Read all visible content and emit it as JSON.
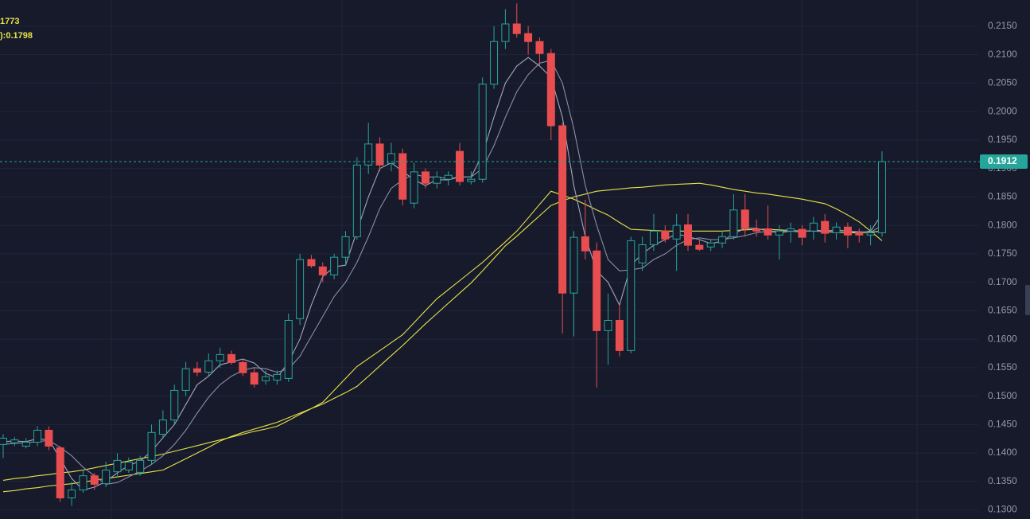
{
  "chart_data": {
    "type": "candlestick",
    "legend_texts": [
      "1773",
      "):0.1798"
    ],
    "legend_color": "#e8e34a",
    "up_color": "#26a69a",
    "down_color": "#e84e50",
    "ylim": [
      0.1284,
      0.2196
    ],
    "yticks": [
      {
        "value": 0.13,
        "label": "0.1300"
      },
      {
        "value": 0.135,
        "label": "0.1350"
      },
      {
        "value": 0.14,
        "label": "0.1400"
      },
      {
        "value": 0.145,
        "label": "0.1450"
      },
      {
        "value": 0.15,
        "label": "0.1500"
      },
      {
        "value": 0.155,
        "label": "0.1550"
      },
      {
        "value": 0.16,
        "label": "0.1600"
      },
      {
        "value": 0.165,
        "label": "0.1650"
      },
      {
        "value": 0.17,
        "label": "0.1700"
      },
      {
        "value": 0.175,
        "label": "0.1750"
      },
      {
        "value": 0.18,
        "label": "0.1800"
      },
      {
        "value": 0.185,
        "label": "0.1850"
      },
      {
        "value": 0.19,
        "label": "0.1900"
      },
      {
        "value": 0.195,
        "label": "0.1950"
      },
      {
        "value": 0.2,
        "label": "0.2000"
      },
      {
        "value": 0.205,
        "label": "0.2050"
      },
      {
        "value": 0.21,
        "label": "0.2100"
      },
      {
        "value": 0.215,
        "label": "0.2150"
      }
    ],
    "grid": true,
    "last_price": 0.1912,
    "ohlc": [
      [
        0.1415,
        0.1433,
        0.1391,
        0.1426
      ],
      [
        0.1418,
        0.1428,
        0.1412,
        0.1423
      ],
      [
        0.1412,
        0.1426,
        0.1408,
        0.1419
      ],
      [
        0.1419,
        0.1447,
        0.1412,
        0.144
      ],
      [
        0.144,
        0.1447,
        0.1405,
        0.1412
      ],
      [
        0.1409,
        0.1412,
        0.1314,
        0.1321
      ],
      [
        0.1321,
        0.1349,
        0.1307,
        0.1335
      ],
      [
        0.1335,
        0.137,
        0.133,
        0.136
      ],
      [
        0.136,
        0.1365,
        0.1335,
        0.1345
      ],
      [
        0.1346,
        0.1385,
        0.134,
        0.137
      ],
      [
        0.1367,
        0.14,
        0.136,
        0.1387
      ],
      [
        0.137,
        0.1392,
        0.1365,
        0.1384
      ],
      [
        0.1366,
        0.1395,
        0.136,
        0.1387
      ],
      [
        0.1387,
        0.145,
        0.138,
        0.1436
      ],
      [
        0.1433,
        0.1475,
        0.1425,
        0.1458
      ],
      [
        0.1458,
        0.152,
        0.145,
        0.151
      ],
      [
        0.151,
        0.156,
        0.15,
        0.1548
      ],
      [
        0.1548,
        0.156,
        0.1535,
        0.1542
      ],
      [
        0.1542,
        0.1575,
        0.1535,
        0.1562
      ],
      [
        0.1562,
        0.1585,
        0.155,
        0.1573
      ],
      [
        0.1573,
        0.158,
        0.1555,
        0.1559
      ],
      [
        0.1559,
        0.1565,
        0.1535,
        0.1541
      ],
      [
        0.1541,
        0.155,
        0.1515,
        0.1521
      ],
      [
        0.1527,
        0.1545,
        0.152,
        0.1534
      ],
      [
        0.1528,
        0.1545,
        0.152,
        0.1538
      ],
      [
        0.1531,
        0.1645,
        0.1525,
        0.1633
      ],
      [
        0.1636,
        0.175,
        0.1625,
        0.174
      ],
      [
        0.174,
        0.1748,
        0.1725,
        0.1729
      ],
      [
        0.1727,
        0.1735,
        0.17,
        0.1713
      ],
      [
        0.1713,
        0.175,
        0.1705,
        0.1744
      ],
      [
        0.1744,
        0.179,
        0.173,
        0.178
      ],
      [
        0.178,
        0.192,
        0.1775,
        0.1906
      ],
      [
        0.1906,
        0.198,
        0.189,
        0.1943
      ],
      [
        0.1943,
        0.1955,
        0.1895,
        0.1906
      ],
      [
        0.1909,
        0.1945,
        0.1895,
        0.1926
      ],
      [
        0.1926,
        0.1935,
        0.1835,
        0.1846
      ],
      [
        0.1839,
        0.191,
        0.183,
        0.1894
      ],
      [
        0.1894,
        0.19,
        0.1865,
        0.1874
      ],
      [
        0.1874,
        0.1895,
        0.1865,
        0.1885
      ],
      [
        0.1881,
        0.1895,
        0.187,
        0.1888
      ],
      [
        0.193,
        0.1945,
        0.187,
        0.1877
      ],
      [
        0.1877,
        0.1895,
        0.1872,
        0.1881
      ],
      [
        0.1881,
        0.206,
        0.1875,
        0.2048
      ],
      [
        0.2048,
        0.215,
        0.204,
        0.2123
      ],
      [
        0.2123,
        0.218,
        0.211,
        0.2154
      ],
      [
        0.2154,
        0.219,
        0.213,
        0.2137
      ],
      [
        0.2137,
        0.215,
        0.21,
        0.2123
      ],
      [
        0.2123,
        0.213,
        0.208,
        0.2102
      ],
      [
        0.2102,
        0.211,
        0.195,
        0.1975
      ],
      [
        0.1975,
        0.198,
        0.161,
        0.1681
      ],
      [
        0.1681,
        0.179,
        0.1605,
        0.1779
      ],
      [
        0.178,
        0.1845,
        0.174,
        0.1755
      ],
      [
        0.1755,
        0.177,
        0.1515,
        0.1615
      ],
      [
        0.1615,
        0.168,
        0.1555,
        0.1633
      ],
      [
        0.1633,
        0.166,
        0.157,
        0.158
      ],
      [
        0.158,
        0.178,
        0.1575,
        0.1773
      ],
      [
        0.1734,
        0.178,
        0.172,
        0.1766
      ],
      [
        0.1766,
        0.182,
        0.1755,
        0.179
      ],
      [
        0.179,
        0.18,
        0.177,
        0.1776
      ],
      [
        0.1776,
        0.182,
        0.172,
        0.18
      ],
      [
        0.1801,
        0.182,
        0.1755,
        0.1765
      ],
      [
        0.1765,
        0.1775,
        0.1755,
        0.1758
      ],
      [
        0.1762,
        0.1775,
        0.1755,
        0.1769
      ],
      [
        0.1769,
        0.179,
        0.176,
        0.178
      ],
      [
        0.178,
        0.1855,
        0.1775,
        0.1827
      ],
      [
        0.1827,
        0.1855,
        0.178,
        0.1794
      ],
      [
        0.1794,
        0.181,
        0.178,
        0.179
      ],
      [
        0.1794,
        0.1835,
        0.1775,
        0.1783
      ],
      [
        0.1783,
        0.18,
        0.174,
        0.179
      ],
      [
        0.179,
        0.1805,
        0.177,
        0.1794
      ],
      [
        0.1793,
        0.18,
        0.1765,
        0.1779
      ],
      [
        0.179,
        0.1815,
        0.1775,
        0.1804
      ],
      [
        0.1807,
        0.182,
        0.177,
        0.1786
      ],
      [
        0.1787,
        0.1805,
        0.1775,
        0.1797
      ],
      [
        0.1797,
        0.1805,
        0.176,
        0.1783
      ],
      [
        0.1787,
        0.1795,
        0.177,
        0.1783
      ],
      [
        0.1783,
        0.18,
        0.1765,
        0.1787
      ],
      [
        0.1787,
        0.193,
        0.178,
        0.1912
      ]
    ],
    "lines": [
      {
        "color": "#e8e34a",
        "values": [
          0.1352,
          0.1355,
          0.1357,
          0.136,
          0.1362,
          0.1365,
          0.1367,
          0.137,
          0.1374,
          0.1378,
          0.1382,
          0.1386,
          0.139,
          0.1394,
          0.1398,
          0.1403,
          0.1408,
          0.1413,
          0.1418,
          0.1423,
          0.1428,
          0.1433,
          0.1438,
          0.1442,
          0.1447,
          0.1457,
          0.1468,
          0.1478,
          0.1489,
          0.151,
          0.1531,
          0.1552,
          0.1566,
          0.158,
          0.1594,
          0.1608,
          0.1629,
          0.165,
          0.1671,
          0.1687,
          0.1703,
          0.1719,
          0.1735,
          0.1753,
          0.1771,
          0.179,
          0.1813,
          0.1837,
          0.186,
          0.1853,
          0.1846,
          0.1837,
          0.1827,
          0.1818,
          0.1805,
          0.1793,
          0.1792,
          0.1791,
          0.179,
          0.179,
          0.179,
          0.179,
          0.179,
          0.179,
          0.1791,
          0.1792,
          0.1793,
          0.1793,
          0.1792,
          0.1791,
          0.179,
          0.179,
          0.1789,
          0.1788,
          0.1787,
          0.1787,
          0.1788,
          0.179
        ]
      },
      {
        "color": "#e8e34a",
        "values": [
          0.1332,
          0.1334,
          0.1337,
          0.1339,
          0.1342,
          0.1344,
          0.1346,
          0.1349,
          0.1352,
          0.1355,
          0.1358,
          0.1361,
          0.1364,
          0.1367,
          0.137,
          0.138,
          0.139,
          0.14,
          0.141,
          0.1421,
          0.1429,
          0.1436,
          0.1442,
          0.1448,
          0.1454,
          0.1462,
          0.147,
          0.1478,
          0.1486,
          0.1496,
          0.1506,
          0.1517,
          0.1535,
          0.1553,
          0.1571,
          0.1589,
          0.1608,
          0.1627,
          0.1645,
          0.1663,
          0.1681,
          0.1699,
          0.172,
          0.1742,
          0.1764,
          0.1781,
          0.1799,
          0.1817,
          0.1835,
          0.1843,
          0.185,
          0.1855,
          0.186,
          0.1862,
          0.1864,
          0.1866,
          0.1867,
          0.1869,
          0.1871,
          0.1872,
          0.1873,
          0.1874,
          0.1871,
          0.1867,
          0.1863,
          0.186,
          0.1857,
          0.1855,
          0.1852,
          0.1849,
          0.1846,
          0.1842,
          0.1838,
          0.1829,
          0.1818,
          0.1806,
          0.179,
          0.1773
        ]
      },
      {
        "color": "#a3a5bd",
        "values": [
          0.142,
          0.1421,
          0.142,
          0.1425,
          0.1423,
          0.139,
          0.1355,
          0.1335,
          0.134,
          0.135,
          0.1365,
          0.1378,
          0.1386,
          0.1403,
          0.1427,
          0.145,
          0.1485,
          0.152,
          0.1535,
          0.1555,
          0.156,
          0.1565,
          0.1558,
          0.154,
          0.1532,
          0.156,
          0.16,
          0.166,
          0.171,
          0.1727,
          0.173,
          0.179,
          0.185,
          0.19,
          0.191,
          0.1895,
          0.188,
          0.187,
          0.188,
          0.188,
          0.1885,
          0.1885,
          0.1925,
          0.199,
          0.205,
          0.208,
          0.2095,
          0.208,
          0.206,
          0.199,
          0.187,
          0.178,
          0.172,
          0.17,
          0.166,
          0.173,
          0.175,
          0.1765,
          0.1775,
          0.1785,
          0.178,
          0.1775,
          0.1768,
          0.1772,
          0.1785,
          0.1795,
          0.1795,
          0.179,
          0.1787,
          0.179,
          0.1788,
          0.1792,
          0.179,
          0.1792,
          0.179,
          0.1787,
          0.179,
          0.182
        ]
      },
      {
        "color": "#8c8ea6",
        "values": [
          0.1415,
          0.1417,
          0.1418,
          0.142,
          0.1422,
          0.141,
          0.1395,
          0.1375,
          0.136,
          0.1345,
          0.1348,
          0.1358,
          0.1368,
          0.138,
          0.1395,
          0.1415,
          0.144,
          0.147,
          0.1498,
          0.152,
          0.1535,
          0.1545,
          0.155,
          0.1548,
          0.1542,
          0.1548,
          0.157,
          0.1605,
          0.164,
          0.1675,
          0.17,
          0.1735,
          0.178,
          0.183,
          0.1865,
          0.188,
          0.189,
          0.1885,
          0.1885,
          0.1882,
          0.1885,
          0.1885,
          0.19,
          0.194,
          0.199,
          0.2035,
          0.2065,
          0.2085,
          0.209,
          0.205,
          0.197,
          0.187,
          0.18,
          0.174,
          0.172,
          0.1722,
          0.1725,
          0.174,
          0.175,
          0.1765,
          0.1775,
          0.1778,
          0.1775,
          0.1775,
          0.1778,
          0.1782,
          0.1787,
          0.179,
          0.179,
          0.179,
          0.179,
          0.179,
          0.179,
          0.1791,
          0.179,
          0.1789,
          0.1788,
          0.18
        ]
      }
    ]
  }
}
